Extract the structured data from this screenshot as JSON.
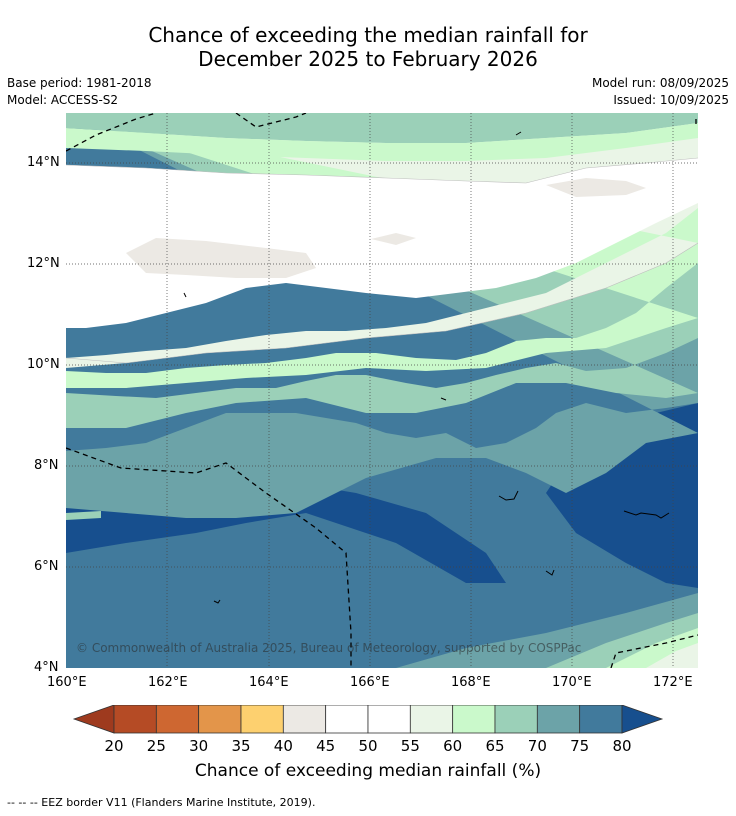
{
  "title": {
    "line1": "Chance of exceeding the median rainfall for",
    "line2": "December 2025 to February 2026"
  },
  "meta": {
    "base_period": "Base period: 1981-2018",
    "model": "Model: ACCESS-S2",
    "model_run": "Model run: 08/09/2025",
    "issued": "Issued: 10/09/2025"
  },
  "map": {
    "copyright": "© Commonwealth of Australia 2025, Bureau of Meteorology, supported by COSPPac",
    "lat_ticks": [
      "14°N",
      "12°N",
      "10°N",
      "8°N",
      "6°N",
      "4°N"
    ],
    "lon_ticks": [
      "160°E",
      "162°E",
      "164°E",
      "166°E",
      "168°E",
      "170°E",
      "172°E"
    ]
  },
  "colorbar": {
    "labels": [
      "20",
      "25",
      "30",
      "35",
      "40",
      "45",
      "50",
      "55",
      "60",
      "65",
      "70",
      "75",
      "80"
    ],
    "colors": [
      "#9e3a1e",
      "#b54b25",
      "#ce6731",
      "#e3954a",
      "#fdd06f",
      "#ece9e4",
      "#ffffff",
      "#ffffff",
      "#eaf5e7",
      "#caf9cb",
      "#9bd0b8",
      "#6ca3a8",
      "#417a9c",
      "#174f8e"
    ],
    "title": "Chance of exceeding median rainfall (%)"
  },
  "footnote": "--  --  -- EEZ border V11 (Flanders Marine Institute, 2019)."
}
